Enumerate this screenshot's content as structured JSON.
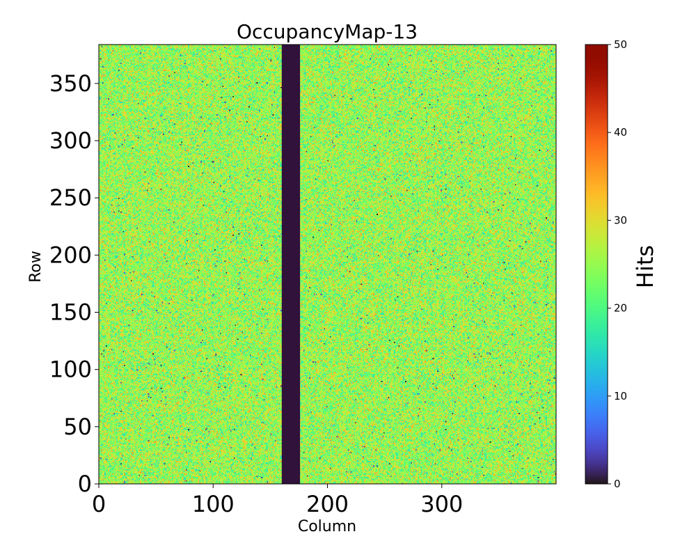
{
  "chart_data": {
    "type": "heatmap",
    "title": "OccupancyMap-13",
    "xlabel": "Column",
    "ylabel": "Row",
    "xlim": [
      0,
      400
    ],
    "ylim": [
      0,
      384
    ],
    "x_ticks": [
      {
        "value": 0,
        "label": "0"
      },
      {
        "value": 100,
        "label": "100"
      },
      {
        "value": 200,
        "label": "200"
      },
      {
        "value": 300,
        "label": "300"
      }
    ],
    "y_ticks": [
      {
        "value": 0,
        "label": "0"
      },
      {
        "value": 50,
        "label": "50"
      },
      {
        "value": 100,
        "label": "100"
      },
      {
        "value": 150,
        "label": "150"
      },
      {
        "value": 200,
        "label": "200"
      },
      {
        "value": 250,
        "label": "250"
      },
      {
        "value": 300,
        "label": "300"
      },
      {
        "value": 350,
        "label": "350"
      }
    ],
    "colorbar": {
      "label": "Hits",
      "range": [
        0,
        50
      ],
      "colormap": "turbo",
      "ticks": [
        {
          "value": 0,
          "label": "0"
        },
        {
          "value": 10,
          "label": "10"
        },
        {
          "value": 20,
          "label": "20"
        },
        {
          "value": 30,
          "label": "30"
        },
        {
          "value": 40,
          "label": "40"
        },
        {
          "value": 50,
          "label": "50"
        }
      ]
    },
    "dead_column_band": {
      "x_start": 160,
      "x_end": 176,
      "value": 0
    },
    "typical_hits_mean": 25,
    "typical_hits_range": [
      15,
      35
    ],
    "colors": {
      "dead_band": "#30123b",
      "axis": "#000000"
    }
  }
}
